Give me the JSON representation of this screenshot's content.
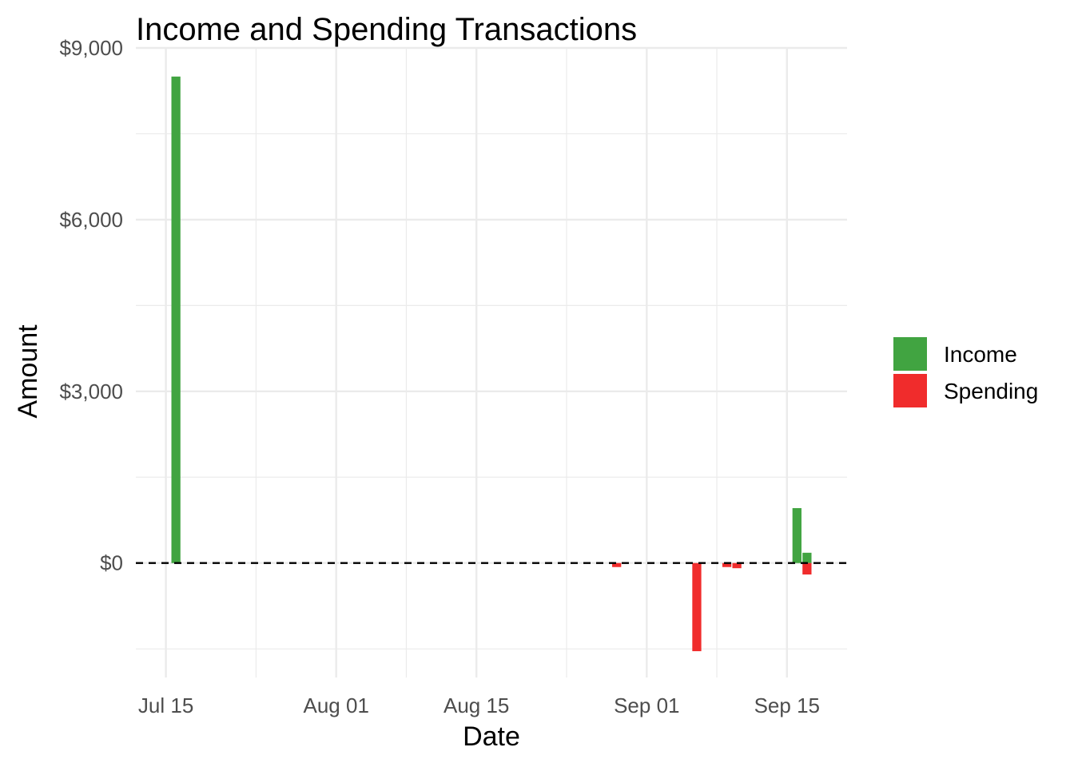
{
  "chart_data": {
    "type": "bar",
    "title": "Income and Spending Transactions",
    "xlabel": "Date",
    "ylabel": "Amount",
    "x_axis": {
      "type": "date",
      "range": [
        "2023-07-12",
        "2023-09-21"
      ],
      "major_ticks": [
        {
          "date": "2023-07-15",
          "label": "Jul 15"
        },
        {
          "date": "2023-08-01",
          "label": "Aug 01"
        },
        {
          "date": "2023-08-15",
          "label": "Aug 15"
        },
        {
          "date": "2023-09-01",
          "label": "Sep 01"
        },
        {
          "date": "2023-09-15",
          "label": "Sep 15"
        }
      ],
      "minor_ticks": [
        "2023-07-24",
        "2023-08-08",
        "2023-08-24",
        "2023-09-08"
      ]
    },
    "y_axis": {
      "range": [
        -2000,
        9000
      ],
      "major_ticks": [
        {
          "value": 0,
          "label": "$0"
        },
        {
          "value": 3000,
          "label": "$3,000"
        },
        {
          "value": 6000,
          "label": "$6,000"
        },
        {
          "value": 9000,
          "label": "$9,000"
        }
      ],
      "minor_ticks": [
        -1500,
        1500,
        4500,
        7500
      ]
    },
    "reference_line": {
      "y": 0,
      "style": "dashed"
    },
    "grid": true,
    "legend": {
      "position": "right"
    },
    "series": [
      {
        "name": "Income",
        "color": "#41a441",
        "points": [
          {
            "date": "2023-07-16",
            "value": 8500
          },
          {
            "date": "2023-09-16",
            "value": 960
          },
          {
            "date": "2023-09-17",
            "value": 180
          }
        ]
      },
      {
        "name": "Spending",
        "color": "#f02c2c",
        "points": [
          {
            "date": "2023-08-29",
            "value": -70
          },
          {
            "date": "2023-09-06",
            "value": -1540
          },
          {
            "date": "2023-09-09",
            "value": -70
          },
          {
            "date": "2023-09-10",
            "value": -90
          },
          {
            "date": "2023-09-17",
            "value": -200
          }
        ]
      }
    ]
  }
}
